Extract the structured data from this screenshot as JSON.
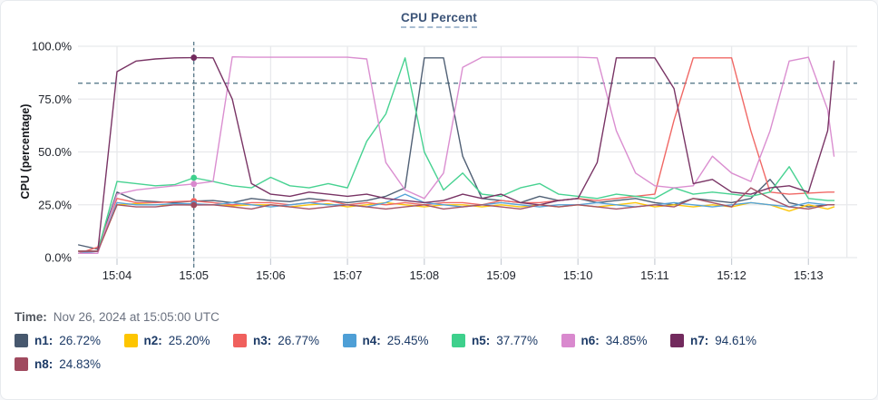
{
  "title": "CPU Percent",
  "footer": {
    "time_label": "Time:",
    "time_value": "Nov 26, 2024 at 15:05:00 UTC"
  },
  "chart_data": {
    "type": "line",
    "title": "CPU Percent",
    "xlabel": "",
    "ylabel": "CPU (percentage)",
    "ylim": [
      0,
      100
    ],
    "grid": true,
    "legend_position": "bottom",
    "y_tick_labels": [
      "100.0%",
      "75.0%",
      "50.0%",
      "25.0%",
      "0.0%"
    ],
    "x_tick_labels": [
      "15:04",
      "15:05",
      "15:06",
      "15:07",
      "15:08",
      "15:09",
      "15:10",
      "15:11",
      "15:12",
      "15:13"
    ],
    "x_tick_times_s": [
      30,
      90,
      150,
      210,
      270,
      330,
      390,
      450,
      510,
      570
    ],
    "x_range_s": [
      0,
      600
    ],
    "time_base": "seconds since 15:03:30 UTC",
    "threshold_pct": 82.5,
    "crosshair": {
      "time_s": 90,
      "label": "15:05:00 UTC"
    },
    "times_s": [
      0,
      15,
      30,
      45,
      60,
      75,
      90,
      105,
      120,
      135,
      150,
      165,
      180,
      195,
      210,
      225,
      240,
      255,
      270,
      285,
      300,
      315,
      330,
      345,
      360,
      375,
      390,
      405,
      420,
      435,
      450,
      465,
      480,
      495,
      510,
      525,
      540,
      555,
      570,
      585,
      590
    ],
    "series": [
      {
        "name": "n1",
        "color": "#47586e",
        "crosshair_value": "26.72%",
        "values": [
          6,
          4,
          31,
          27,
          26.5,
          26,
          26.72,
          27,
          26,
          28,
          27,
          26.5,
          28,
          27,
          26,
          27,
          29,
          33,
          94.5,
          94.5,
          48,
          28,
          27,
          26,
          29,
          27,
          28,
          26,
          27,
          28,
          26,
          25,
          28,
          27,
          26,
          28,
          37,
          26,
          24,
          25,
          25
        ]
      },
      {
        "name": "n2",
        "color": "#fdc500",
        "crosshair_value": "25.20%",
        "values": [
          3,
          3,
          25,
          25.5,
          25,
          25,
          25.2,
          25,
          24.5,
          25,
          25,
          24,
          25,
          25.5,
          24,
          25,
          26,
          25,
          24,
          25,
          25,
          24,
          25,
          24,
          25,
          24,
          25,
          24,
          25,
          26,
          24,
          25,
          24,
          25,
          24,
          26,
          25,
          22,
          25,
          23,
          24
        ]
      },
      {
        "name": "n3",
        "color": "#f0605d",
        "crosshair_value": "26.77%",
        "values": [
          2,
          5,
          28,
          26,
          26,
          26.5,
          26.77,
          26,
          25,
          26,
          26,
          25,
          26,
          27,
          25,
          26,
          25,
          26,
          25,
          26,
          26,
          25,
          27,
          26,
          26,
          27,
          28,
          27,
          28,
          29,
          30,
          65,
          94.5,
          94.5,
          94.5,
          60,
          31,
          30,
          30.5,
          31,
          31
        ]
      },
      {
        "name": "n4",
        "color": "#4e9fd6",
        "crosshair_value": "25.45%",
        "values": [
          2,
          3,
          26,
          25,
          25,
          25.5,
          25.45,
          25,
          26,
          25,
          24,
          25,
          26,
          25,
          25,
          24,
          26,
          30,
          26,
          25,
          24,
          25,
          26,
          25,
          24,
          25,
          25,
          26,
          25,
          24,
          25,
          26,
          25,
          24,
          25,
          26,
          25,
          24,
          26,
          25,
          25
        ]
      },
      {
        "name": "n5",
        "color": "#3ed08c",
        "crosshair_value": "37.77%",
        "values": [
          3,
          3,
          36,
          35,
          34,
          34.5,
          37.77,
          36,
          34,
          33,
          38,
          34,
          33,
          35,
          33,
          55,
          68,
          94.5,
          50,
          32,
          40,
          30,
          29,
          33,
          35,
          30,
          29,
          28,
          30,
          29,
          28,
          33,
          30,
          31,
          30,
          29,
          31,
          43,
          28,
          27,
          27
        ]
      },
      {
        "name": "n6",
        "color": "#d989ce",
        "crosshair_value": "34.85%",
        "values": [
          2,
          2,
          30,
          32,
          33,
          34,
          34.85,
          36,
          95,
          94.8,
          94.8,
          94.8,
          94.8,
          94.8,
          94.8,
          94,
          45,
          32,
          28,
          40,
          90,
          94.8,
          94.8,
          94.8,
          94.8,
          94.8,
          94.8,
          94.5,
          60,
          40,
          34,
          33,
          34,
          48,
          40,
          36,
          60,
          93,
          94.8,
          70,
          48
        ]
      },
      {
        "name": "n7",
        "color": "#722a5d",
        "crosshair_value": "94.61%",
        "values": [
          3,
          3,
          88,
          93,
          94,
          94.5,
          94.61,
          94.5,
          75,
          35,
          30,
          29,
          31,
          30,
          29,
          30,
          28,
          27,
          26,
          27,
          30,
          28,
          30,
          26,
          25,
          27,
          28,
          45,
          94.5,
          94.5,
          94.5,
          80,
          35,
          37,
          31,
          30,
          33,
          34,
          31,
          60,
          93
        ]
      },
      {
        "name": "n8",
        "color": "#a04a5f",
        "crosshair_value": "24.83%",
        "values": [
          3,
          3,
          25,
          24,
          24,
          25,
          24.83,
          25,
          24,
          23,
          25,
          24,
          23,
          24,
          25,
          24,
          23,
          24,
          25,
          23,
          24,
          25,
          24,
          23,
          25,
          24,
          25,
          24,
          23,
          24,
          25,
          24,
          28,
          26,
          24,
          33,
          28,
          24,
          23,
          25,
          25
        ]
      }
    ]
  }
}
